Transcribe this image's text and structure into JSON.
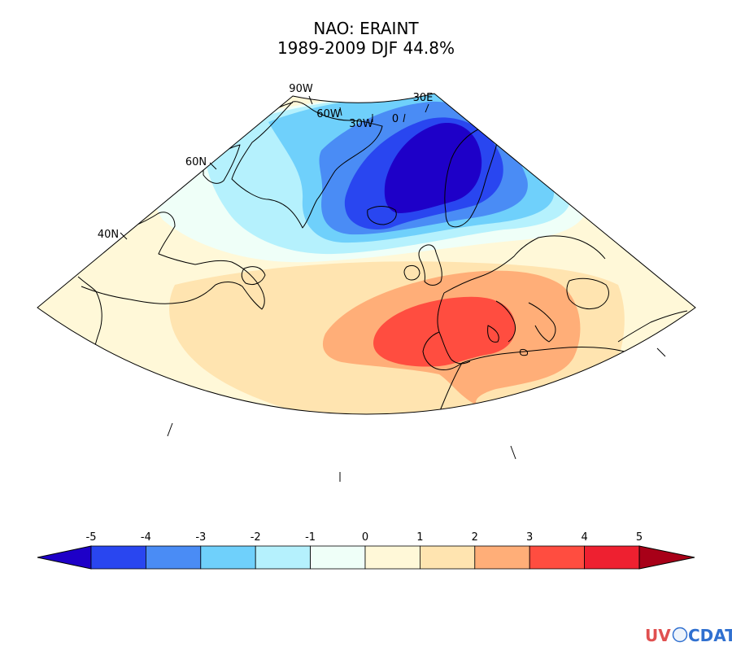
{
  "title": {
    "line1": "NAO: ERAINT",
    "line2": "1989-2009 DJF 44.8%"
  },
  "meridian_labels": [
    "90W",
    "60W",
    "30W",
    "0",
    "30E"
  ],
  "parallel_labels": [
    "60N",
    "40N"
  ],
  "colorbar": {
    "levels": [
      "-5",
      "-4",
      "-3",
      "-2",
      "-1",
      "0",
      "1",
      "2",
      "3",
      "4",
      "5"
    ],
    "colors": {
      "under": "#1e00c8",
      "bins": [
        "#2946f0",
        "#4a8cf5",
        "#6fd0fb",
        "#b5f1fd",
        "#effff8",
        "#fff8d8",
        "#ffe4b0",
        "#ffae78",
        "#ff4d40",
        "#ee2030"
      ],
      "over": "#a80018"
    }
  },
  "field_colors": {
    "n1": "#b5f1fd",
    "n2": "#6fd0fb",
    "n3": "#4a8cf5",
    "n4": "#2946f0",
    "n5": "#1e00c8",
    "z0": "#effff8",
    "p1": "#fff8d8",
    "p2": "#ffe4b0",
    "p3": "#ffae78",
    "p4": "#ff4d40"
  },
  "logo": {
    "text_left": "UV",
    "text_right": "CDAT",
    "colors": [
      "#e05050",
      "#e8a020",
      "#40a040",
      "#3070d0"
    ]
  }
}
